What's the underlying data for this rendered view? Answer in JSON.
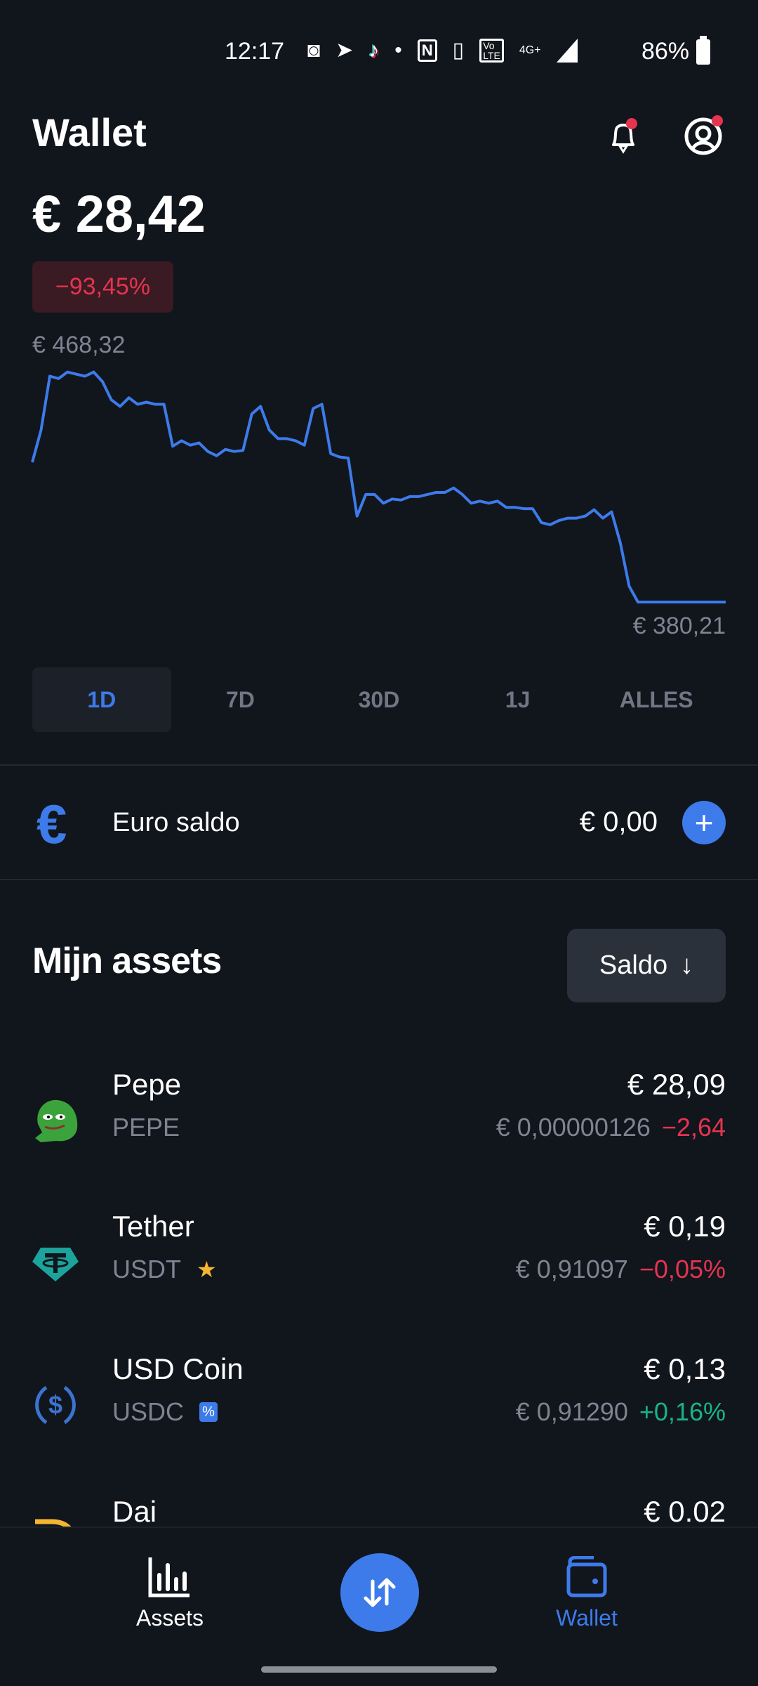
{
  "status_bar": {
    "time": "12:17",
    "battery": "86%",
    "network": "4G+",
    "icons": [
      "discord-icon",
      "telegram-icon",
      "tiktok-icon",
      "dot-icon",
      "nfc-icon",
      "vibrate-icon",
      "volte-icon",
      "signal-icon",
      "battery-icon"
    ]
  },
  "header": {
    "title": "Wallet",
    "notification_dot": true,
    "profile_dot": true
  },
  "balance": {
    "total": "€ 28,42",
    "change": "−93,45%"
  },
  "chart_data": {
    "type": "line",
    "max_label": "€ 468,32",
    "min_label": "€ 380,21",
    "ylim": [
      380.21,
      468.32
    ],
    "color": "#3d7bea",
    "values": [
      433.5,
      445.8,
      466.3,
      465.4,
      467.9,
      467.1,
      466.3,
      467.9,
      464.2,
      457.3,
      454.8,
      458.1,
      455.6,
      456.4,
      455.6,
      455.6,
      439.6,
      441.7,
      440.0,
      440.9,
      437.6,
      436.0,
      438.4,
      437.6,
      438.0,
      451.9,
      454.8,
      445.8,
      442.5,
      442.5,
      441.7,
      440.0,
      454.0,
      455.6,
      436.8,
      435.5,
      435.1,
      413.0,
      421.2,
      421.2,
      417.9,
      419.5,
      419.1,
      420.4,
      420.4,
      421.2,
      422.0,
      422.0,
      423.7,
      421.2,
      417.9,
      418.7,
      417.9,
      418.7,
      416.3,
      416.3,
      415.8,
      415.8,
      410.5,
      409.7,
      411.3,
      412.2,
      412.2,
      413.0,
      415.4,
      412.2,
      414.6,
      402.7,
      386.3,
      380.21,
      380.21,
      380.21,
      380.21,
      380.21,
      380.21,
      380.21,
      380.21,
      380.21,
      380.21,
      380.21
    ]
  },
  "timeframes": {
    "selected": "1D",
    "items": [
      "1D",
      "7D",
      "30D",
      "1J",
      "ALLES"
    ]
  },
  "euro": {
    "label": "Euro saldo",
    "value": "€ 0,00",
    "add": "+"
  },
  "assets_section": {
    "title": "Mijn assets",
    "sort_label": "Saldo",
    "sort_arrow": "↓"
  },
  "assets": [
    {
      "name": "Pepe",
      "ticker": "PEPE",
      "value": "€ 28,09",
      "price": "€ 0,00000126",
      "change": "−2,64",
      "trend": "down",
      "badge": ""
    },
    {
      "name": "Tether",
      "ticker": "USDT",
      "value": "€ 0,19",
      "price": "€ 0,91097",
      "change": "−0,05%",
      "trend": "down",
      "badge": "star"
    },
    {
      "name": "USD Coin",
      "ticker": "USDC",
      "value": "€ 0,13",
      "price": "€ 0,91290",
      "change": "+0,16%",
      "trend": "up",
      "badge": "percent"
    },
    {
      "name": "Dai",
      "ticker": "",
      "value": "€ 0.02",
      "price": "",
      "change": "",
      "trend": "",
      "badge": ""
    }
  ],
  "nav": {
    "assets": "Assets",
    "wallet": "Wallet",
    "active": "Wallet"
  },
  "colors": {
    "accent": "#3d7bea",
    "negative": "#e5344f",
    "positive": "#19b486",
    "background": "#11151c"
  }
}
